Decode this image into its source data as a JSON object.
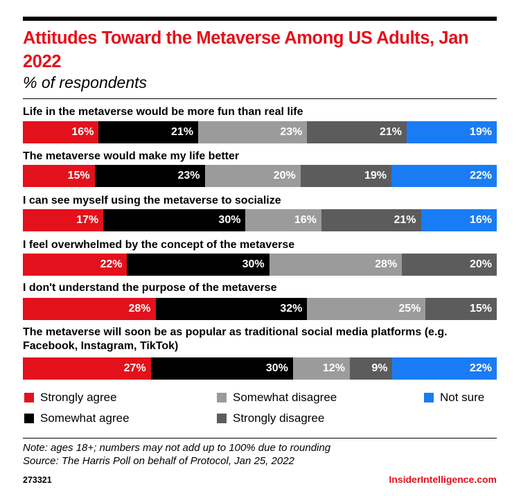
{
  "header": {
    "title": "Attitudes Toward the Metaverse Among US Adults, Jan 2022",
    "subtitle": "% of respondents"
  },
  "chart_data": {
    "type": "bar",
    "orientation": "horizontal-stacked-100",
    "title": "Attitudes Toward the Metaverse Among US Adults, Jan 2022",
    "subtitle": "% of respondents",
    "categories": [
      "Life in the metaverse would be more fun than real life",
      "The metaverse would make my life better",
      "I can see myself using the metaverse to socialize",
      "I feel overwhelmed by the concept of the metaverse",
      "I don't understand the purpose of the metaverse",
      "The metaverse will soon be as popular as traditional social media platforms (e.g. Facebook, Instagram, TikTok)"
    ],
    "series": [
      {
        "name": "Strongly agree",
        "color": "#e3111b",
        "values": [
          16,
          15,
          17,
          22,
          28,
          27
        ]
      },
      {
        "name": "Somewhat agree",
        "color": "#000000",
        "values": [
          21,
          23,
          30,
          30,
          32,
          30
        ]
      },
      {
        "name": "Somewhat disagree",
        "color": "#9b9b9b",
        "values": [
          23,
          20,
          16,
          28,
          25,
          12
        ]
      },
      {
        "name": "Strongly disagree",
        "color": "#5c5c5c",
        "values": [
          21,
          19,
          21,
          20,
          15,
          9
        ]
      },
      {
        "name": "Not sure",
        "color": "#1a7cf5",
        "values": [
          19,
          22,
          16,
          0,
          0,
          22
        ]
      }
    ],
    "value_suffix": "%",
    "legend_placement": "bottom",
    "grid": false
  },
  "footer": {
    "note": "Note: ages 18+; numbers may not add up to 100% due to rounding",
    "source": "Source: The Harris Poll on behalf of Protocol, Jan 25, 2022",
    "chart_id": "273321",
    "brand": "InsiderIntelligence.com"
  }
}
